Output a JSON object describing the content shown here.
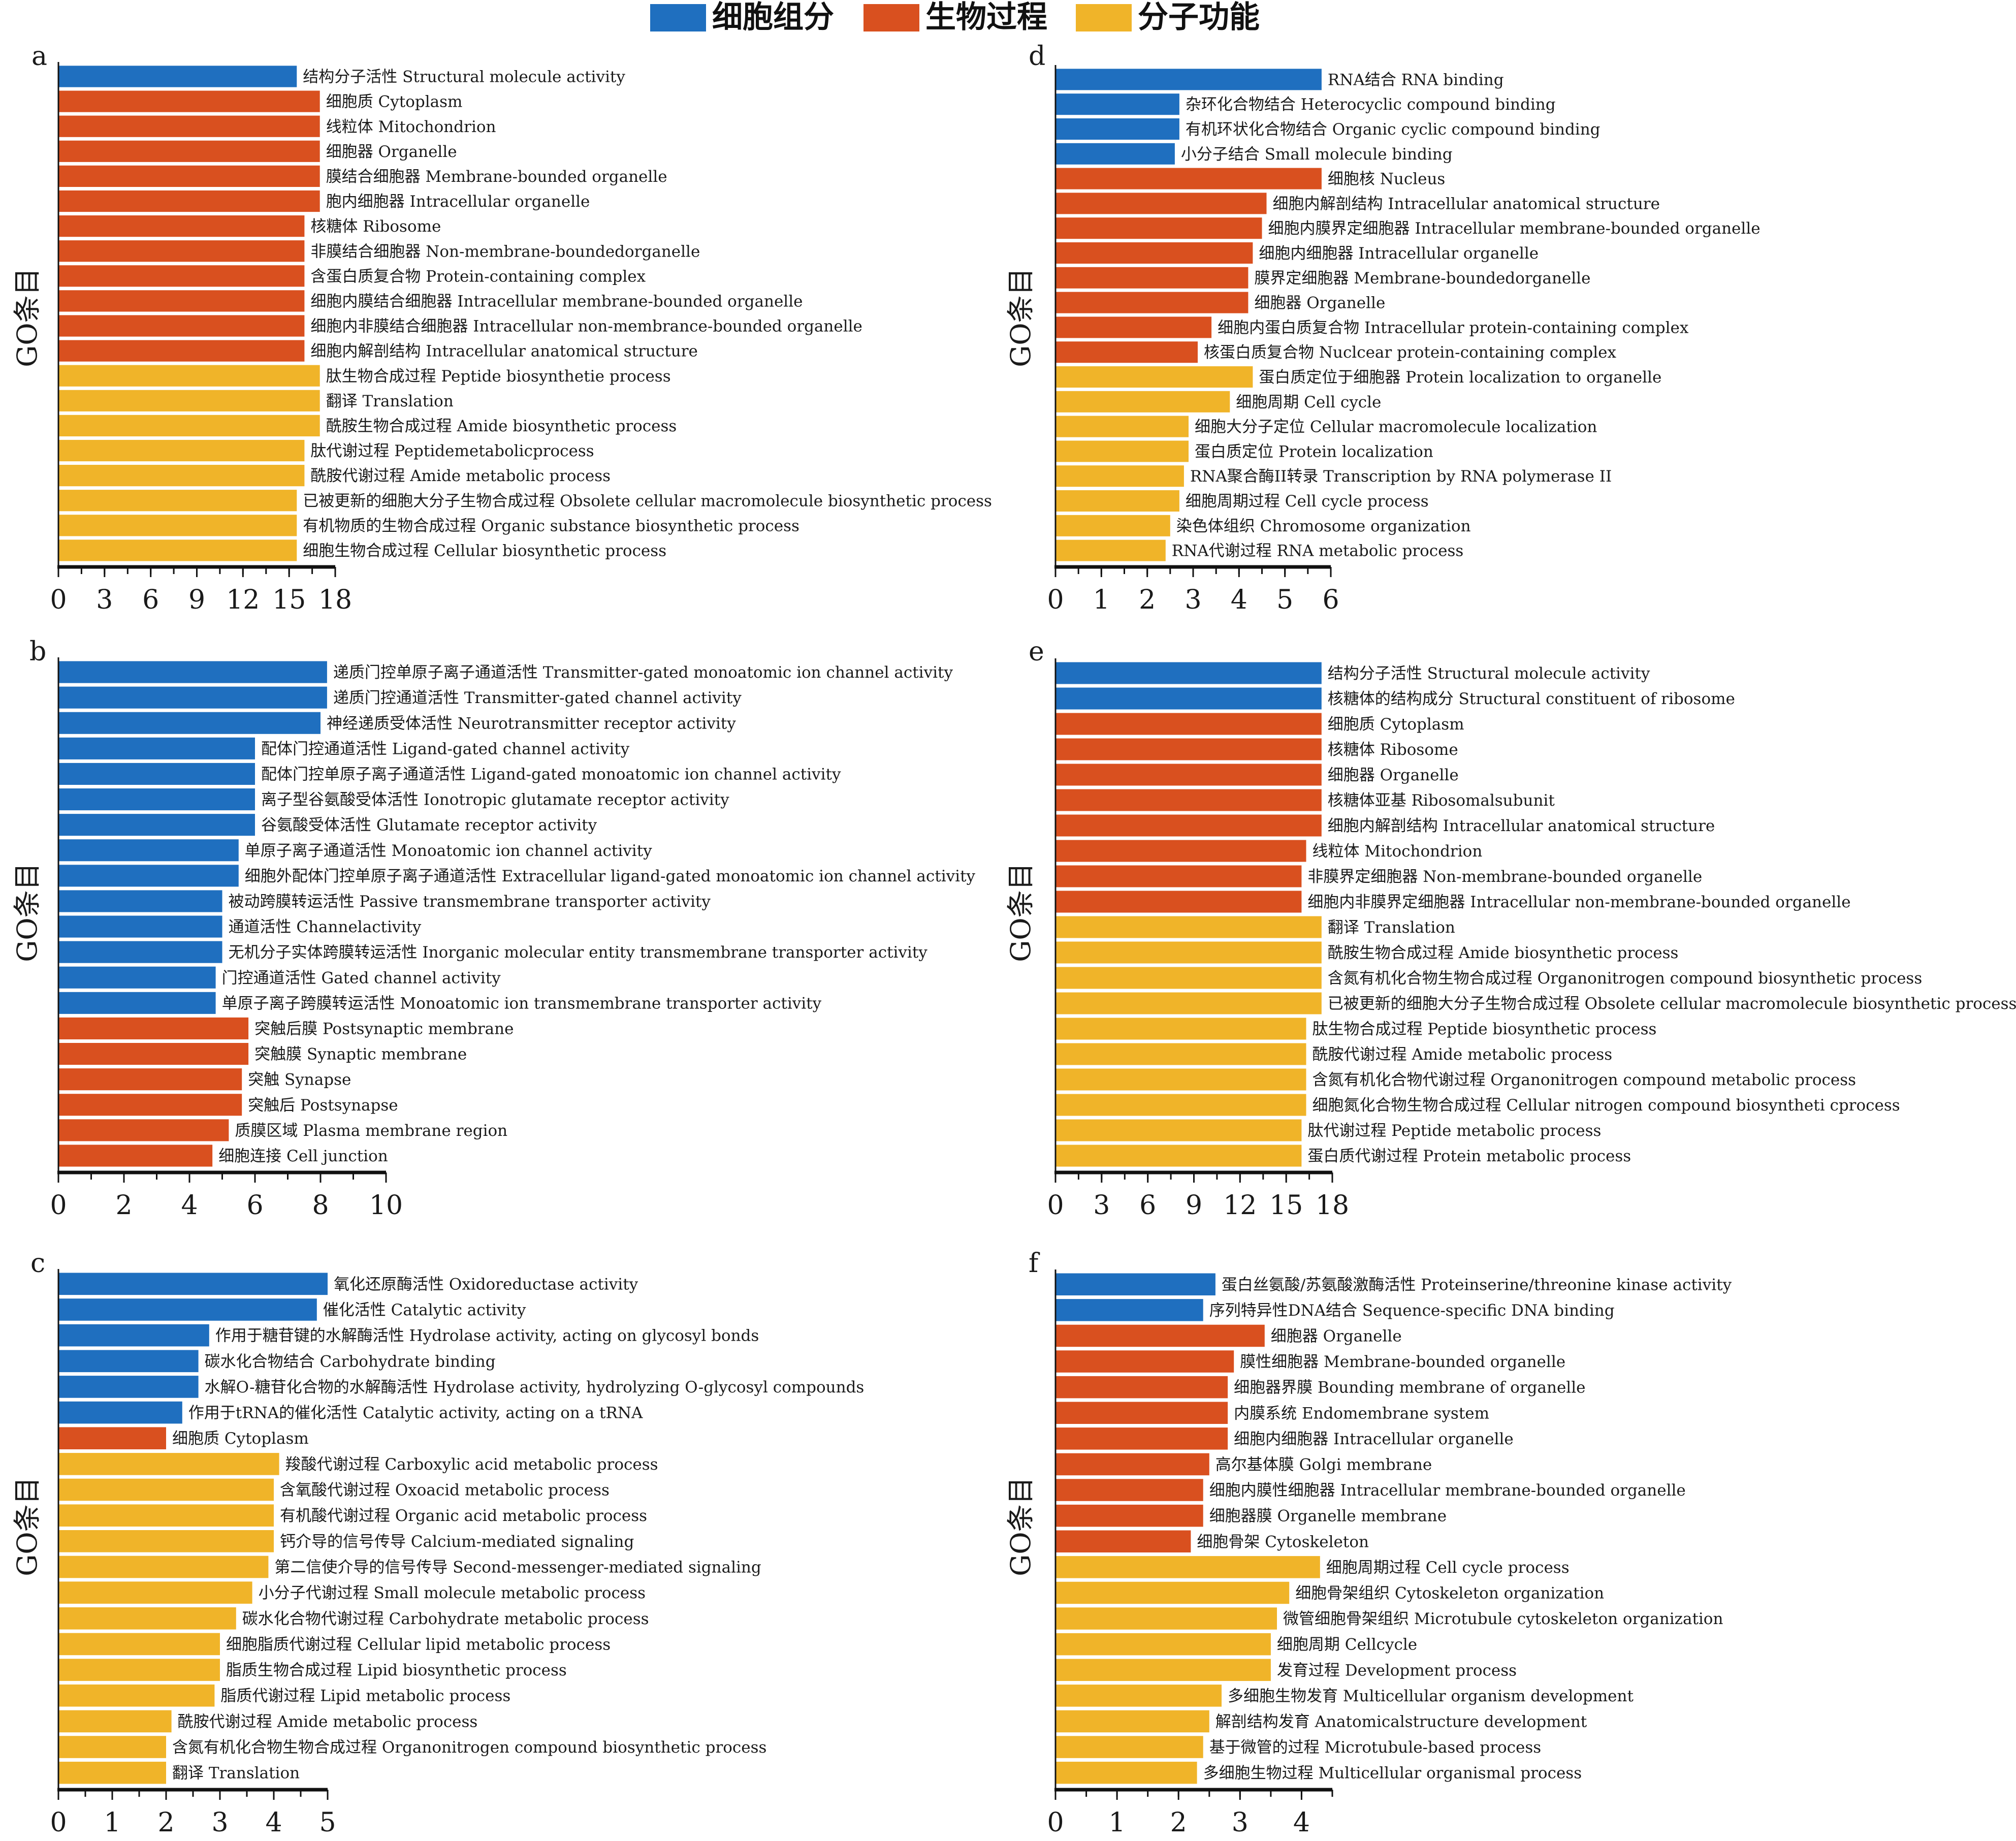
{
  "legend": [
    {
      "label": "细胞组分",
      "color": "#1f6fbf"
    },
    {
      "label": "生物过程",
      "color": "#d9501f"
    },
    {
      "label": "分子功能",
      "color": "#f0b429"
    }
  ],
  "chart_data": [
    {
      "panel": "a",
      "type": "bar",
      "orientation": "horizontal",
      "ylabel": "GO条目",
      "xlim": [
        0,
        18
      ],
      "xticks": [
        0,
        3,
        6,
        9,
        12,
        15,
        18
      ],
      "series": [
        {
          "name": "细胞组分",
          "items": [
            {
              "label": "结构分子活性 Structural molecule activity",
              "value": 15.5
            }
          ]
        },
        {
          "name": "生物过程",
          "items": [
            {
              "label": "细胞质 Cytoplasm",
              "value": 17
            },
            {
              "label": "线粒体 Mitochondrion",
              "value": 17
            },
            {
              "label": "细胞器 Organelle",
              "value": 17
            },
            {
              "label": "膜结合细胞器 Membrane-bounded organelle",
              "value": 17
            },
            {
              "label": "胞内细胞器 Intracellular organelle",
              "value": 17
            },
            {
              "label": "核糖体 Ribosome",
              "value": 16
            },
            {
              "label": "非膜结合细胞器 Non-membrane-boundedorganelle",
              "value": 16
            },
            {
              "label": "含蛋白质复合物 Protein-containing complex",
              "value": 16
            },
            {
              "label": "细胞内膜结合细胞器 Intracellular membrane-bounded organelle",
              "value": 16
            },
            {
              "label": "细胞内非膜结合细胞器 Intracellular non-membrance-bounded organelle",
              "value": 16
            },
            {
              "label": "细胞内解剖结构 Intracellular anatomical structure",
              "value": 16
            }
          ]
        },
        {
          "name": "分子功能",
          "items": [
            {
              "label": "肽生物合成过程 Peptide biosynthetie process",
              "value": 17
            },
            {
              "label": "翻译 Translation",
              "value": 17
            },
            {
              "label": "酰胺生物合成过程 Amide biosynthetic process",
              "value": 17
            },
            {
              "label": "肽代谢过程 Peptidemetabolicprocess",
              "value": 16
            },
            {
              "label": "酰胺代谢过程 Amide metabolic process",
              "value": 16
            },
            {
              "label": "已被更新的细胞大分子生物合成过程 Obsolete cellular macromolecule biosynthetic process",
              "value": 15.5
            },
            {
              "label": "有机物质的生物合成过程 Organic substance biosynthetic process",
              "value": 15.5
            },
            {
              "label": "细胞生物合成过程 Cellular biosynthetic process",
              "value": 15.5
            }
          ]
        }
      ]
    },
    {
      "panel": "b",
      "type": "bar",
      "orientation": "horizontal",
      "ylabel": "GO条目",
      "xlim": [
        0,
        10
      ],
      "xticks": [
        0,
        2,
        4,
        6,
        8,
        10
      ],
      "series": [
        {
          "name": "细胞组分",
          "items": [
            {
              "label": "递质门控单原子离子通道活性 Transmitter-gated monoatomic ion channel activity",
              "value": 8.2
            },
            {
              "label": "递质门控通道活性 Transmitter-gated channel activity",
              "value": 8.2
            },
            {
              "label": "神经递质受体活性 Neurotransmitter receptor activity",
              "value": 8.0
            },
            {
              "label": "配体门控通道活性 Ligand-gated channel activity",
              "value": 6.0
            },
            {
              "label": "配体门控单原子离子通道活性 Ligand-gated monoatomic ion channel activity",
              "value": 6.0
            },
            {
              "label": "离子型谷氨酸受体活性 Ionotropic glutamate receptor activity",
              "value": 6.0
            },
            {
              "label": "谷氨酸受体活性 Glutamate receptor activity",
              "value": 6.0
            },
            {
              "label": "单原子离子通道活性 Monoatomic ion channel activity",
              "value": 5.5
            },
            {
              "label": "细胞外配体门控单原子离子通道活性 Extracellular ligand-gated monoatomic ion channel activity",
              "value": 5.5
            },
            {
              "label": "被动跨膜转运活性 Passive transmembrane transporter activity",
              "value": 5.0
            },
            {
              "label": "通道活性 Channelactivity",
              "value": 5.0
            },
            {
              "label": "无机分子实体跨膜转运活性 Inorganic molecular entity transmembrane transporter activity",
              "value": 5.0
            },
            {
              "label": "门控通道活性 Gated channel activity",
              "value": 4.8
            },
            {
              "label": "单原子离子跨膜转运活性 Monoatomic ion transmembrane transporter activity",
              "value": 4.8
            }
          ]
        },
        {
          "name": "生物过程",
          "items": [
            {
              "label": "突触后膜 Postsynaptic membrane",
              "value": 5.8
            },
            {
              "label": "突触膜 Synaptic membrane",
              "value": 5.8
            },
            {
              "label": "突触 Synapse",
              "value": 5.6
            },
            {
              "label": "突触后 Postsynapse",
              "value": 5.6
            },
            {
              "label": "质膜区域 Plasma membrane region",
              "value": 5.2
            },
            {
              "label": "细胞连接 Cell junction",
              "value": 4.7
            }
          ]
        },
        {
          "name": "分子功能",
          "items": []
        }
      ]
    },
    {
      "panel": "c",
      "type": "bar",
      "orientation": "horizontal",
      "ylabel": "GO条目",
      "xlim": [
        0,
        5
      ],
      "xticks": [
        0,
        1,
        2,
        3,
        4,
        5
      ],
      "series": [
        {
          "name": "细胞组分",
          "items": [
            {
              "label": "氧化还原酶活性 Oxidoreductase activity",
              "value": 5
            },
            {
              "label": "催化活性 Catalytic activity",
              "value": 4.8
            },
            {
              "label": "作用于糖苷键的水解酶活性 Hydrolase activity, acting on glycosyl bonds",
              "value": 2.8
            },
            {
              "label": "碳水化合物结合 Carbohydrate binding",
              "value": 2.6
            },
            {
              "label": "水解O-糖苷化合物的水解酶活性 Hydrolase activity, hydrolyzing O-glycosyl compounds",
              "value": 2.6
            },
            {
              "label": "作用于tRNA的催化活性 Catalytic activity, acting on a tRNA",
              "value": 2.3
            }
          ]
        },
        {
          "name": "生物过程",
          "items": [
            {
              "label": "细胞质 Cytoplasm",
              "value": 2.0
            }
          ]
        },
        {
          "name": "分子功能",
          "items": [
            {
              "label": "羧酸代谢过程 Carboxylic acid metabolic process",
              "value": 4.1
            },
            {
              "label": "含氧酸代谢过程 Oxoacid metabolic process",
              "value": 4.0
            },
            {
              "label": "有机酸代谢过程 Organic acid metabolic process",
              "value": 4.0
            },
            {
              "label": "钙介导的信号传导 Calcium-mediated signaling",
              "value": 4.0
            },
            {
              "label": "第二信使介导的信号传导 Second-messenger-mediated signaling",
              "value": 3.9
            },
            {
              "label": "小分子代谢过程 Small molecule metabolic process",
              "value": 3.6
            },
            {
              "label": "碳水化合物代谢过程 Carbohydrate metabolic process",
              "value": 3.3
            },
            {
              "label": "细胞脂质代谢过程 Cellular lipid metabolic process",
              "value": 3.0
            },
            {
              "label": "脂质生物合成过程 Lipid biosynthetic process",
              "value": 3.0
            },
            {
              "label": "脂质代谢过程 Lipid metabolic process",
              "value": 2.9
            },
            {
              "label": "酰胺代谢过程 Amide metabolic process",
              "value": 2.1
            },
            {
              "label": "含氮有机化合物生物合成过程 Organonitrogen compound biosynthetic process",
              "value": 2.0
            },
            {
              "label": "翻译 Translation",
              "value": 2.0
            }
          ]
        }
      ]
    },
    {
      "panel": "d",
      "type": "bar",
      "orientation": "horizontal",
      "ylabel": "GO条目",
      "xlim": [
        0,
        6
      ],
      "xticks": [
        0,
        1,
        2,
        3,
        4,
        5,
        6
      ],
      "series": [
        {
          "name": "细胞组分",
          "items": [
            {
              "label": "RNA结合 RNA binding",
              "value": 5.8
            },
            {
              "label": "杂环化合物结合 Heterocyclic compound binding",
              "value": 2.7
            },
            {
              "label": "有机环状化合物结合 Organic cyclic compound binding",
              "value": 2.7
            },
            {
              "label": "小分子结合 Small molecule binding",
              "value": 2.6
            }
          ]
        },
        {
          "name": "生物过程",
          "items": [
            {
              "label": "细胞核 Nucleus",
              "value": 5.8
            },
            {
              "label": "细胞内解剖结构 Intracellular anatomical structure",
              "value": 4.6
            },
            {
              "label": "细胞内膜界定细胞器 Intracellular membrane-bounded organelle",
              "value": 4.5
            },
            {
              "label": "细胞内细胞器 Intracellular organelle",
              "value": 4.3
            },
            {
              "label": "膜界定细胞器 Membrane-boundedorganelle",
              "value": 4.2
            },
            {
              "label": "细胞器 Organelle",
              "value": 4.2
            },
            {
              "label": "细胞内蛋白质复合物 Intracellular protein-containing complex",
              "value": 3.4
            },
            {
              "label": "核蛋白质复合物 Nuclcear protein-containing complex",
              "value": 3.1
            }
          ]
        },
        {
          "name": "分子功能",
          "items": [
            {
              "label": "蛋白质定位于细胞器 Protein localization to organelle",
              "value": 4.3
            },
            {
              "label": "细胞周期 Cell cycle",
              "value": 3.8
            },
            {
              "label": "细胞大分子定位 Cellular macromolecule localization",
              "value": 2.9
            },
            {
              "label": "蛋白质定位 Protein localization",
              "value": 2.9
            },
            {
              "label": "RNA聚合酶II转录 Transcription by RNA polymerase II",
              "value": 2.8
            },
            {
              "label": "细胞周期过程 Cell cycle process",
              "value": 2.7
            },
            {
              "label": "染色体组织 Chromosome organization",
              "value": 2.5
            },
            {
              "label": "RNA代谢过程 RNA metabolic process",
              "value": 2.4
            }
          ]
        }
      ]
    },
    {
      "panel": "e",
      "type": "bar",
      "orientation": "horizontal",
      "ylabel": "GO条目",
      "xlim": [
        0,
        18
      ],
      "xticks": [
        0,
        3,
        6,
        9,
        12,
        15,
        18
      ],
      "series": [
        {
          "name": "细胞组分",
          "items": [
            {
              "label": "结构分子活性 Structural molecule activity",
              "value": 17.3
            },
            {
              "label": "核糖体的结构成分 Structural constituent of ribosome",
              "value": 17.3
            }
          ]
        },
        {
          "name": "生物过程",
          "items": [
            {
              "label": "细胞质 Cytoplasm",
              "value": 17.3
            },
            {
              "label": "核糖体 Ribosome",
              "value": 17.3
            },
            {
              "label": "细胞器 Organelle",
              "value": 17.3
            },
            {
              "label": "核糖体亚基 Ribosomalsubunit",
              "value": 17.3
            },
            {
              "label": "细胞内解剖结构 Intracellular anatomical structure",
              "value": 17.3
            },
            {
              "label": "线粒体 Mitochondrion",
              "value": 16.3
            },
            {
              "label": "非膜界定细胞器 Non-membrane-bounded organelle",
              "value": 16.0
            },
            {
              "label": "细胞内非膜界定细胞器 Intracellular non-membrane-bounded organelle",
              "value": 16.0
            }
          ]
        },
        {
          "name": "分子功能",
          "items": [
            {
              "label": "翻译 Translation",
              "value": 17.3
            },
            {
              "label": "酰胺生物合成过程 Amide biosynthetic process",
              "value": 17.3
            },
            {
              "label": "含氮有机化合物生物合成过程 Organonitrogen compound biosynthetic process",
              "value": 17.3
            },
            {
              "label": "已被更新的细胞大分子生物合成过程 Obsolete cellular macromolecule biosynthetic process",
              "value": 17.3
            },
            {
              "label": "肽生物合成过程 Peptide biosynthetic process",
              "value": 16.3
            },
            {
              "label": "酰胺代谢过程 Amide metabolic process",
              "value": 16.3
            },
            {
              "label": "含氮有机化合物代谢过程 Organonitrogen compound metabolic process",
              "value": 16.3
            },
            {
              "label": "细胞氮化合物生物合成过程 Cellular nitrogen compound biosyntheti cprocess",
              "value": 16.3
            },
            {
              "label": "肽代谢过程 Peptide metabolic process",
              "value": 16.0
            },
            {
              "label": "蛋白质代谢过程 Protein metabolic process",
              "value": 16.0
            }
          ]
        }
      ]
    },
    {
      "panel": "f",
      "type": "bar",
      "orientation": "horizontal",
      "ylabel": "GO条目",
      "xlim": [
        0,
        4.5
      ],
      "xticks": [
        0,
        1,
        2,
        3,
        4
      ],
      "series": [
        {
          "name": "细胞组分",
          "items": [
            {
              "label": "蛋白丝氨酸/苏氨酸激酶活性 Proteinserine/threonine kinase activity",
              "value": 2.6
            },
            {
              "label": "序列特异性DNA结合 Sequence-specific DNA binding",
              "value": 2.4
            }
          ]
        },
        {
          "name": "生物过程",
          "items": [
            {
              "label": "细胞器 Organelle",
              "value": 3.4
            },
            {
              "label": "膜性细胞器 Membrane-bounded organelle",
              "value": 2.9
            },
            {
              "label": "细胞器界膜 Bounding membrane of organelle",
              "value": 2.8
            },
            {
              "label": "内膜系统 Endomembrane system",
              "value": 2.8
            },
            {
              "label": "细胞内细胞器 Intracellular organelle",
              "value": 2.8
            },
            {
              "label": "高尔基体膜 Golgi membrane",
              "value": 2.5
            },
            {
              "label": "细胞内膜性细胞器 Intracellular membrane-bounded organelle",
              "value": 2.4
            },
            {
              "label": "细胞器膜 Organelle membrane",
              "value": 2.4
            },
            {
              "label": "细胞骨架 Cytoskeleton",
              "value": 2.2
            }
          ]
        },
        {
          "name": "分子功能",
          "items": [
            {
              "label": "细胞周期过程 Cell cycle process",
              "value": 4.3
            },
            {
              "label": "细胞骨架组织 Cytoskeleton organization",
              "value": 3.8
            },
            {
              "label": "微管细胞骨架组织 Microtubule cytoskeleton organization",
              "value": 3.6
            },
            {
              "label": "细胞周期 Cellcycle",
              "value": 3.5
            },
            {
              "label": "发育过程 Development process",
              "value": 3.5
            },
            {
              "label": "多细胞生物发育 Multicellular organism development",
              "value": 2.7
            },
            {
              "label": "解剖结构发育 Anatomicalstructure development",
              "value": 2.5
            },
            {
              "label": "基于微管的过程 Microtubule-based process",
              "value": 2.4
            },
            {
              "label": "多细胞生物过程 Multicellular organismal process",
              "value": 2.3
            }
          ]
        }
      ]
    }
  ]
}
